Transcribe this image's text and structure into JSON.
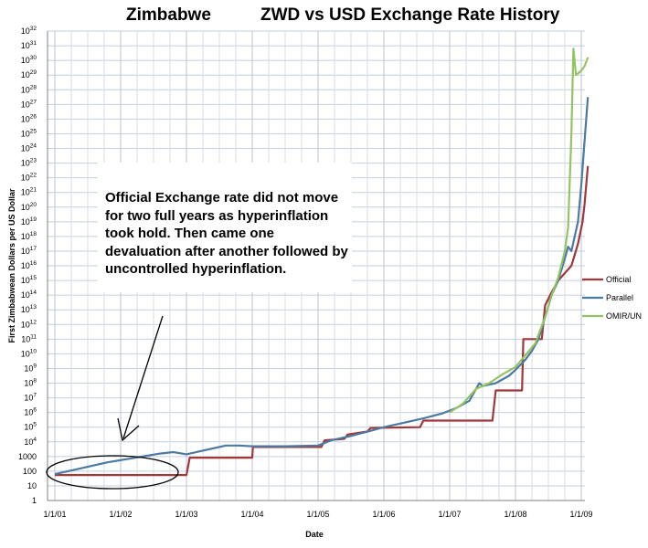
{
  "header": {
    "title_left": "Zimbabwe",
    "title_right": "ZWD vs USD Exchange Rate History"
  },
  "annotation": {
    "text": "Official Exchange rate did not move for two full years as hyperinflation took hold.  Then came one devaluation after another followed by uncontrolled hyperinflation."
  },
  "chart_data": {
    "type": "line",
    "title": "Zimbabwe ZWD vs USD Exchange Rate History",
    "xlabel": "Date",
    "ylabel": "First Zimbabwean Dollars per US Dollar",
    "y_scale": "log10",
    "ylim_exponent": [
      0,
      32
    ],
    "y_ticks": [
      {
        "base": "1",
        "exp": ""
      },
      {
        "base": "10",
        "exp": ""
      },
      {
        "base": "100",
        "exp": ""
      },
      {
        "base": "1000",
        "exp": ""
      },
      {
        "base": "10",
        "exp": "4"
      },
      {
        "base": "10",
        "exp": "5"
      },
      {
        "base": "10",
        "exp": "6"
      },
      {
        "base": "10",
        "exp": "7"
      },
      {
        "base": "10",
        "exp": "8"
      },
      {
        "base": "10",
        "exp": "9"
      },
      {
        "base": "10",
        "exp": "10"
      },
      {
        "base": "10",
        "exp": "11"
      },
      {
        "base": "10",
        "exp": "12"
      },
      {
        "base": "10",
        "exp": "13"
      },
      {
        "base": "10",
        "exp": "14"
      },
      {
        "base": "10",
        "exp": "15"
      },
      {
        "base": "10",
        "exp": "16"
      },
      {
        "base": "10",
        "exp": "17"
      },
      {
        "base": "10",
        "exp": "18"
      },
      {
        "base": "10",
        "exp": "19"
      },
      {
        "base": "10",
        "exp": "20"
      },
      {
        "base": "10",
        "exp": "21"
      },
      {
        "base": "10",
        "exp": "22"
      },
      {
        "base": "10",
        "exp": "23"
      },
      {
        "base": "10",
        "exp": "24"
      },
      {
        "base": "10",
        "exp": "25"
      },
      {
        "base": "10",
        "exp": "26"
      },
      {
        "base": "10",
        "exp": "27"
      },
      {
        "base": "10",
        "exp": "28"
      },
      {
        "base": "10",
        "exp": "29"
      },
      {
        "base": "10",
        "exp": "30"
      },
      {
        "base": "10",
        "exp": "31"
      },
      {
        "base": "10",
        "exp": "32"
      }
    ],
    "x_ticks": [
      "1/1/01",
      "1/1/02",
      "1/1/03",
      "1/1/04",
      "1/1/05",
      "1/1/06",
      "1/1/07",
      "1/1/08",
      "1/1/09"
    ],
    "xlim_year": [
      2001.0,
      2009.3
    ],
    "grid": true,
    "legend_position": "right",
    "series": [
      {
        "name": "Official",
        "color": "#a0373a",
        "x": [
          2001.0,
          2003.0,
          2003.05,
          2004.0,
          2004.01,
          2005.05,
          2005.1,
          2005.4,
          2005.45,
          2005.75,
          2005.8,
          2006.55,
          2006.6,
          2007.65,
          2007.7,
          2008.1,
          2008.12,
          2008.4,
          2008.45,
          2008.55,
          2008.65,
          2008.75,
          2008.85,
          2008.95,
          2009.02,
          2009.05,
          2009.1
        ],
        "log10_values": [
          1.74,
          1.74,
          2.92,
          2.92,
          3.65,
          3.65,
          4.1,
          4.2,
          4.5,
          4.7,
          4.95,
          5.0,
          5.45,
          5.45,
          7.5,
          7.5,
          11.0,
          11.0,
          13.3,
          14.2,
          15.0,
          15.5,
          16.0,
          17.5,
          19.0,
          20.2,
          22.8
        ]
      },
      {
        "name": "Parallel",
        "color": "#4b7aa3",
        "x": [
          2001.0,
          2001.2,
          2001.5,
          2001.8,
          2002.0,
          2002.2,
          2002.4,
          2002.6,
          2002.8,
          2003.0,
          2003.2,
          2003.4,
          2003.6,
          2003.8,
          2004.0,
          2004.5,
          2005.0,
          2005.2,
          2005.5,
          2005.8,
          2006.0,
          2006.3,
          2006.6,
          2006.9,
          2007.1,
          2007.3,
          2007.45,
          2007.5,
          2007.7,
          2007.9,
          2008.0,
          2008.15,
          2008.25,
          2008.35,
          2008.45,
          2008.55,
          2008.65,
          2008.75,
          2008.8,
          2008.85,
          2008.9,
          2008.95,
          2009.0,
          2009.05,
          2009.1
        ],
        "log10_values": [
          1.8,
          2.0,
          2.3,
          2.6,
          2.75,
          2.9,
          3.05,
          3.2,
          3.3,
          3.15,
          3.35,
          3.55,
          3.75,
          3.75,
          3.7,
          3.7,
          3.75,
          4.1,
          4.4,
          4.75,
          5.0,
          5.3,
          5.6,
          5.95,
          6.3,
          6.8,
          8.0,
          7.8,
          8.0,
          8.5,
          8.9,
          9.6,
          10.2,
          11.0,
          12.5,
          14.0,
          15.0,
          16.5,
          17.3,
          17.0,
          18.0,
          19.0,
          21.5,
          24.5,
          27.5
        ]
      },
      {
        "name": "OMIR/UN",
        "color": "#93c461",
        "x": [
          2007.0,
          2007.2,
          2007.4,
          2007.6,
          2007.8,
          2008.0,
          2008.15,
          2008.3,
          2008.45,
          2008.55,
          2008.65,
          2008.75,
          2008.8,
          2008.85,
          2008.88,
          2008.92,
          2009.0,
          2009.05,
          2009.1
        ],
        "log10_values": [
          6.0,
          6.6,
          7.6,
          8.0,
          8.6,
          9.1,
          9.9,
          10.7,
          12.5,
          14.0,
          15.2,
          17.0,
          18.6,
          25.0,
          30.8,
          29.0,
          29.3,
          29.6,
          30.2
        ]
      }
    ]
  }
}
